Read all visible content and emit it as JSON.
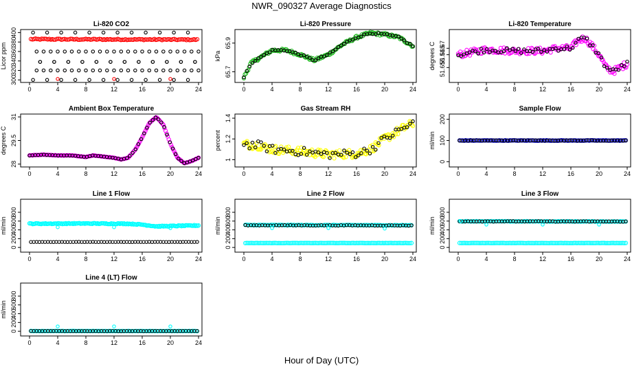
{
  "figure": {
    "title": "NWR_090327  Average Diagnostics",
    "xlabel": "Hour of Day (UTC)"
  },
  "chart_data": [
    {
      "type": "scatter",
      "title": "Li-820 CO2",
      "ylabel": "Licor ppm",
      "xlim": [
        0,
        24
      ],
      "ylim": [
        299,
        402
      ],
      "xticks": [
        0,
        4,
        8,
        12,
        16,
        20,
        24
      ],
      "yticks": [
        300,
        320,
        340,
        360,
        380,
        400
      ],
      "series": [
        {
          "name": "co2_avg",
          "color": "#ff0000",
          "pattern": "flat",
          "y0": 386,
          "y1": 385,
          "noise": 1.2
        },
        {
          "name": "co2_high",
          "color": "#000000",
          "pattern": "stair",
          "levels": [
            400,
            360,
            338,
            320
          ]
        },
        {
          "name": "co2_low",
          "color": "#000000",
          "pattern": "stair",
          "levels": [
            300,
            320,
            338,
            360
          ]
        },
        {
          "name": "co2_red_low",
          "color": "#ff0000",
          "pattern": "points",
          "points": [
            [
              4,
              302
            ],
            [
              12,
              302
            ],
            [
              20,
              302
            ]
          ]
        }
      ]
    },
    {
      "type": "scatter",
      "title": "Li-820 Pressure",
      "ylabel": "kPa",
      "xlim": [
        0,
        24
      ],
      "ylim": [
        65.64,
        65.98
      ],
      "xticks": [
        0,
        4,
        8,
        12,
        16,
        20,
        24
      ],
      "yticks": [
        65.7,
        65.9
      ],
      "series": [
        {
          "name": "pressure",
          "color": "#22bb22",
          "pattern": "path",
          "noise": 0.01,
          "knots": [
            [
              0,
              65.66
            ],
            [
              1,
              65.76
            ],
            [
              3,
              65.82
            ],
            [
              4,
              65.85
            ],
            [
              6,
              65.85
            ],
            [
              8,
              65.82
            ],
            [
              10,
              65.78
            ],
            [
              12,
              65.82
            ],
            [
              14,
              65.89
            ],
            [
              16,
              65.94
            ],
            [
              18,
              65.97
            ],
            [
              20,
              65.96
            ],
            [
              22,
              65.94
            ],
            [
              24,
              65.88
            ]
          ]
        },
        {
          "name": "pressure_avg",
          "color": "#000000",
          "pattern": "sparse_path",
          "noise": 0.006,
          "knots": [
            [
              0,
              65.66
            ],
            [
              1,
              65.76
            ],
            [
              3,
              65.82
            ],
            [
              4,
              65.85
            ],
            [
              6,
              65.85
            ],
            [
              8,
              65.82
            ],
            [
              10,
              65.78
            ],
            [
              12,
              65.82
            ],
            [
              14,
              65.89
            ],
            [
              16,
              65.94
            ],
            [
              18,
              65.97
            ],
            [
              20,
              65.96
            ],
            [
              22,
              65.94
            ],
            [
              24,
              65.88
            ]
          ]
        }
      ]
    },
    {
      "type": "scatter",
      "title": "Li-820 Temperature",
      "ylabel": "degrees C",
      "xlim": [
        0,
        24
      ],
      "ylim": [
        51.645,
        51.683
      ],
      "xticks": [
        0,
        4,
        8,
        12,
        16,
        20,
        24
      ],
      "yticks": [
        51.655,
        51.665,
        51.67
      ],
      "series": [
        {
          "name": "licor_temp",
          "color": "#ff00ff",
          "pattern": "path",
          "noise": 0.0025,
          "knots": [
            [
              0,
              51.665
            ],
            [
              4,
              51.669
            ],
            [
              8,
              51.668
            ],
            [
              12,
              51.668
            ],
            [
              14,
              51.67
            ],
            [
              16,
              51.67
            ],
            [
              17,
              51.676
            ],
            [
              18,
              51.678
            ],
            [
              19,
              51.672
            ],
            [
              20,
              51.665
            ],
            [
              21,
              51.655
            ],
            [
              22,
              51.652
            ],
            [
              24,
              51.658
            ]
          ]
        },
        {
          "name": "licor_temp_avg",
          "color": "#000000",
          "pattern": "sparse_path",
          "noise": 0.002,
          "knots": [
            [
              0,
              51.665
            ],
            [
              4,
              51.669
            ],
            [
              8,
              51.668
            ],
            [
              12,
              51.668
            ],
            [
              14,
              51.67
            ],
            [
              16,
              51.67
            ],
            [
              17,
              51.676
            ],
            [
              18,
              51.678
            ],
            [
              19,
              51.672
            ],
            [
              20,
              51.665
            ],
            [
              21,
              51.655
            ],
            [
              22,
              51.652
            ],
            [
              24,
              51.658
            ]
          ]
        }
      ]
    },
    {
      "type": "scatter",
      "title": "Ambient Box Temperature",
      "ylabel": "degrees C",
      "xlim": [
        0,
        24
      ],
      "ylim": [
        27.95,
        31.05
      ],
      "xticks": [
        0,
        4,
        8,
        12,
        16,
        20,
        24
      ],
      "yticks": [
        28.0,
        29.5,
        31.0
      ],
      "series": [
        {
          "name": "box_temp",
          "color": "#ff00ff",
          "pattern": "path",
          "noise": 0.01,
          "knots": [
            [
              0,
              28.55
            ],
            [
              2,
              28.6
            ],
            [
              4,
              28.55
            ],
            [
              6,
              28.55
            ],
            [
              8,
              28.45
            ],
            [
              9,
              28.55
            ],
            [
              10,
              28.5
            ],
            [
              12,
              28.4
            ],
            [
              13,
              28.3
            ],
            [
              14,
              28.4
            ],
            [
              15,
              28.9
            ],
            [
              16,
              29.7
            ],
            [
              17,
              30.6
            ],
            [
              18,
              31.0
            ],
            [
              19,
              30.5
            ],
            [
              20,
              29.3
            ],
            [
              21,
              28.4
            ],
            [
              22,
              28.05
            ],
            [
              23,
              28.2
            ],
            [
              24,
              28.4
            ]
          ]
        },
        {
          "name": "box_temp_avg",
          "color": "#000000",
          "pattern": "sparse_path",
          "noise": 0.005,
          "knots": [
            [
              0,
              28.55
            ],
            [
              2,
              28.6
            ],
            [
              4,
              28.55
            ],
            [
              6,
              28.55
            ],
            [
              8,
              28.45
            ],
            [
              9,
              28.55
            ],
            [
              10,
              28.5
            ],
            [
              12,
              28.4
            ],
            [
              13,
              28.3
            ],
            [
              14,
              28.4
            ],
            [
              15,
              28.9
            ],
            [
              16,
              29.7
            ],
            [
              17,
              30.6
            ],
            [
              18,
              31.0
            ],
            [
              19,
              30.5
            ],
            [
              20,
              29.3
            ],
            [
              21,
              28.4
            ],
            [
              22,
              28.05
            ],
            [
              23,
              28.2
            ],
            [
              24,
              28.4
            ]
          ]
        }
      ]
    },
    {
      "type": "scatter",
      "title": "Gas Stream RH",
      "ylabel": "percent",
      "xlim": [
        0,
        24
      ],
      "ylim": [
        0.95,
        1.42
      ],
      "xticks": [
        0,
        4,
        8,
        12,
        16,
        20,
        24
      ],
      "yticks": [
        1.0,
        1.2,
        1.4
      ],
      "series": [
        {
          "name": "rh",
          "color": "#ffff00",
          "pattern": "path",
          "noise": 0.04,
          "knots": [
            [
              0,
              1.15
            ],
            [
              2,
              1.14
            ],
            [
              4,
              1.1
            ],
            [
              8,
              1.08
            ],
            [
              12,
              1.05
            ],
            [
              16,
              1.06
            ],
            [
              18,
              1.1
            ],
            [
              20,
              1.2
            ],
            [
              22,
              1.28
            ],
            [
              24,
              1.35
            ]
          ]
        },
        {
          "name": "rh_avg",
          "color": "#000000",
          "pattern": "sparse_path",
          "noise": 0.04,
          "knots": [
            [
              0,
              1.15
            ],
            [
              2,
              1.14
            ],
            [
              4,
              1.1
            ],
            [
              8,
              1.08
            ],
            [
              12,
              1.05
            ],
            [
              16,
              1.06
            ],
            [
              18,
              1.1
            ],
            [
              20,
              1.2
            ],
            [
              22,
              1.28
            ],
            [
              24,
              1.35
            ]
          ]
        }
      ]
    },
    {
      "type": "scatter",
      "title": "Sample Flow",
      "ylabel": "ml/min",
      "xlim": [
        0,
        24
      ],
      "ylim": [
        -15,
        215
      ],
      "xticks": [
        0,
        4,
        8,
        12,
        16,
        20,
        24
      ],
      "yticks": [
        0,
        100,
        200
      ],
      "series": [
        {
          "name": "sample_flow",
          "color": "#0000cc",
          "pattern": "flat",
          "y0": 100,
          "y1": 100,
          "noise": 1
        },
        {
          "name": "sample_flow_avg",
          "color": "#000000",
          "pattern": "sparse_flat",
          "y0": 100,
          "y1": 100,
          "noise": 1
        }
      ]
    },
    {
      "type": "scatter",
      "title": "Line 1 Flow",
      "ylabel": "ml/min",
      "xlim": [
        0,
        24
      ],
      "ylim": [
        -60,
        1050
      ],
      "xticks": [
        0,
        4,
        8,
        12,
        16,
        20,
        24
      ],
      "yticks": [
        0,
        200,
        400,
        600,
        800
      ],
      "series": [
        {
          "name": "line1_high",
          "color": "#00ffff",
          "pattern": "path",
          "noise": 10,
          "knots": [
            [
              0,
              540
            ],
            [
              8,
              545
            ],
            [
              14,
              540
            ],
            [
              16,
              520
            ],
            [
              18,
              480
            ],
            [
              24,
              500
            ]
          ]
        },
        {
          "name": "line1_low",
          "color": "#000000",
          "pattern": "sparse_flat",
          "y0": 125,
          "y1": 125,
          "noise": 2
        },
        {
          "name": "line1_spikes",
          "color": "#00ffff",
          "pattern": "points",
          "points": [
            [
              4,
              460
            ],
            [
              12,
              460
            ],
            [
              20,
              440
            ]
          ]
        }
      ]
    },
    {
      "type": "scatter",
      "title": "Line 2 Flow",
      "ylabel": "ml/min",
      "xlim": [
        0,
        24
      ],
      "ylim": [
        -60,
        1050
      ],
      "xticks": [
        0,
        4,
        8,
        12,
        16,
        20,
        24
      ],
      "yticks": [
        0,
        200,
        400,
        600,
        800
      ],
      "series": [
        {
          "name": "line2_high",
          "color": "#00ffff",
          "pattern": "flat",
          "y0": 510,
          "y1": 505,
          "noise": 6
        },
        {
          "name": "line2_high_avg",
          "color": "#000000",
          "pattern": "sparse_flat",
          "y0": 505,
          "y1": 500,
          "noise": 6
        },
        {
          "name": "line2_low",
          "color": "#00ffff",
          "pattern": "flat",
          "y0": 100,
          "y1": 100,
          "noise": 2
        },
        {
          "name": "line2_spikes",
          "color": "#00ffff",
          "pattern": "points",
          "points": [
            [
              4,
              440
            ],
            [
              12,
              440
            ],
            [
              20,
              430
            ]
          ]
        }
      ]
    },
    {
      "type": "scatter",
      "title": "Line 3 Flow",
      "ylabel": "ml/min",
      "xlim": [
        0,
        24
      ],
      "ylim": [
        -60,
        1050
      ],
      "xticks": [
        0,
        4,
        8,
        12,
        16,
        20,
        24
      ],
      "yticks": [
        0,
        200,
        400,
        600,
        800
      ],
      "series": [
        {
          "name": "line3_high",
          "color": "#00ffff",
          "pattern": "flat",
          "y0": 595,
          "y1": 590,
          "noise": 5
        },
        {
          "name": "line3_high_avg",
          "color": "#000000",
          "pattern": "sparse_flat",
          "y0": 595,
          "y1": 590,
          "noise": 5
        },
        {
          "name": "line3_low",
          "color": "#00ffff",
          "pattern": "flat",
          "y0": 100,
          "y1": 100,
          "noise": 2
        },
        {
          "name": "line3_spikes",
          "color": "#00ffff",
          "pattern": "points",
          "points": [
            [
              0.3,
              600
            ],
            [
              4,
              520
            ],
            [
              12,
              520
            ],
            [
              20,
              520
            ]
          ]
        }
      ]
    },
    {
      "type": "scatter",
      "title": "Line 4 (LT) Flow",
      "ylabel": "ml/min",
      "xlim": [
        0,
        24
      ],
      "ylim": [
        -60,
        1050
      ],
      "xticks": [
        0,
        4,
        8,
        12,
        16,
        20,
        24
      ],
      "yticks": [
        0,
        200,
        400,
        600,
        800
      ],
      "series": [
        {
          "name": "line4_flow",
          "color": "#00ffff",
          "pattern": "flat",
          "y0": 5,
          "y1": 5,
          "noise": 2
        },
        {
          "name": "line4_avg",
          "color": "#000000",
          "pattern": "sparse_flat",
          "y0": 5,
          "y1": 5,
          "noise": 2
        },
        {
          "name": "line4_spikes",
          "color": "#00ffff",
          "pattern": "points",
          "points": [
            [
              4,
              110
            ],
            [
              12,
              110
            ],
            [
              20,
              110
            ]
          ]
        }
      ]
    }
  ]
}
